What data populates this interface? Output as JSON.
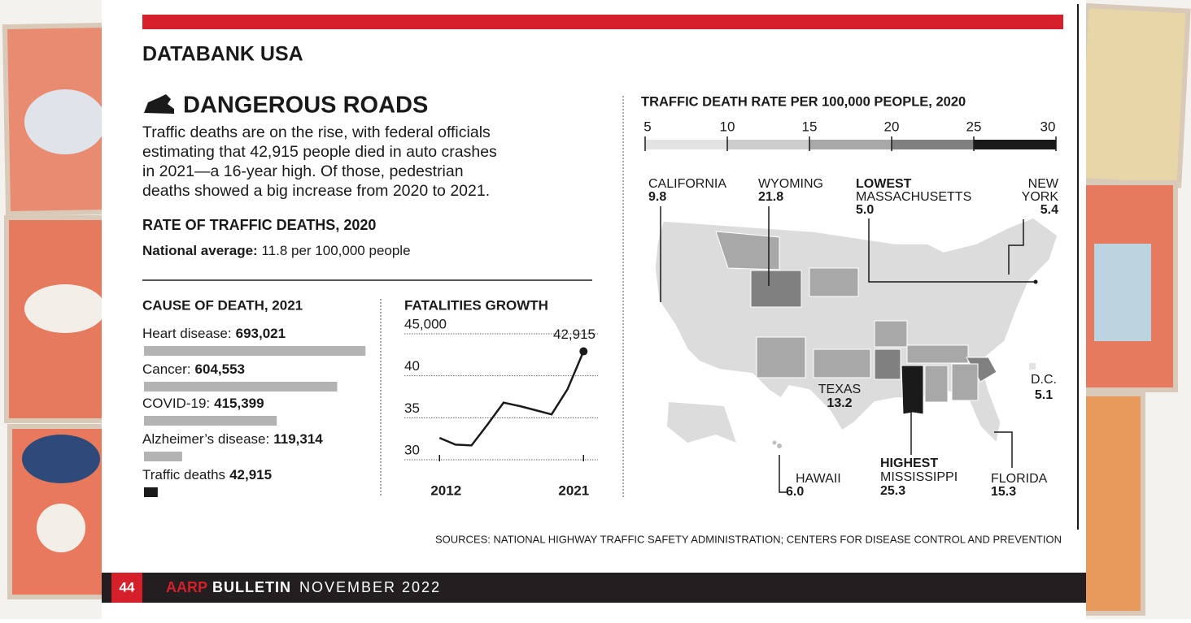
{
  "header": {
    "title": "DATABANK USA"
  },
  "article": {
    "title": "DANGEROUS ROADS",
    "body_lines": [
      "Traffic deaths are on the rise, with federal officials",
      "estimating that 42,915 people died in auto crashes",
      "in 2021—a 16-year high. Of those, pedestrian",
      "deaths showed a big increase from 2020 to 2021."
    ],
    "rate_heading": "RATE OF TRAFFIC DEATHS, 2020",
    "national_average_label": "National average:",
    "national_average_text": "11.8 per 100,000 people"
  },
  "chart_data": [
    {
      "type": "bar",
      "orientation": "horizontal",
      "title": "CAUSE OF DEATH, 2021",
      "categories": [
        "Heart disease:",
        "Cancer:",
        "COVID-19:",
        "Alzheimer’s disease:",
        "Traffic deaths"
      ],
      "values": [
        693021,
        604553,
        415399,
        119314,
        42915
      ],
      "value_labels": [
        "693,021",
        "604,553",
        "415,399",
        "119,314",
        "42,915"
      ],
      "colors": [
        "#b3b3b3",
        "#b3b3b3",
        "#b3b3b3",
        "#b3b3b3",
        "#1a1a1a"
      ],
      "xlim": [
        0,
        700000
      ]
    },
    {
      "type": "line",
      "title": "FATALITIES GROWTH",
      "x": [
        2012,
        2013,
        2014,
        2015,
        2016,
        2017,
        2018,
        2019,
        2020,
        2021
      ],
      "values": [
        32.6,
        31.8,
        31.7,
        34.2,
        36.8,
        36.4,
        35.9,
        35.4,
        38.4,
        42.915
      ],
      "value_labels": [
        null,
        null,
        null,
        null,
        null,
        null,
        null,
        null,
        null,
        "42,915"
      ],
      "color": "#1a1a1a",
      "xlim": [
        2009.8,
        2021.9
      ],
      "xticks": [
        2012,
        2021
      ],
      "ylim": [
        30,
        45
      ],
      "yticks": [
        30,
        35,
        40,
        {
          "value": 45,
          "label": "45,000"
        }
      ],
      "grid": true
    },
    {
      "type": "colorscale",
      "title": "TRAFFIC DEATH RATE PER 100,000 PEOPLE, 2020",
      "xlim": [
        5,
        30
      ],
      "xticks": [
        5,
        10,
        15,
        20,
        25,
        30
      ],
      "colors": [
        "#e3e3e3",
        "#cdcdcd",
        "#a8a8a8",
        "#808080",
        "#1a1a1a"
      ]
    }
  ],
  "map": {
    "annotations": [
      {
        "label": "CALIFORNIA",
        "value": "9.8"
      },
      {
        "label": "WYOMING",
        "value": "21.8"
      },
      {
        "tag": "LOWEST",
        "label": "MASSACHUSETTS",
        "value": "5.0"
      },
      {
        "label_lines": [
          "NEW",
          "YORK"
        ],
        "value": "5.4"
      },
      {
        "label": "TEXAS",
        "value": "13.2"
      },
      {
        "label": "D.C.",
        "value": "5.1"
      },
      {
        "label": "HAWAII",
        "value": "6.0"
      },
      {
        "tag": "HIGHEST",
        "label": "MISSISSIPPI",
        "value": "25.3"
      },
      {
        "label": "FLORIDA",
        "value": "15.3"
      }
    ]
  },
  "sources": "SOURCES: NATIONAL HIGHWAY TRAFFIC SAFETY ADMINISTRATION; CENTERS FOR DISEASE CONTROL AND PREVENTION",
  "footer": {
    "page": "44",
    "brand": "AARP",
    "publication": "BULLETIN",
    "issue": "NOVEMBER 2022"
  }
}
